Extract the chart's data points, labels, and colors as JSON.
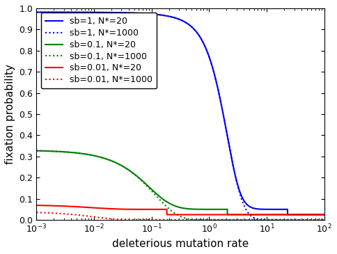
{
  "title": "",
  "xlabel": "deleterious mutation rate",
  "ylabel": "fixation probability",
  "xlim_log": [
    -3,
    2
  ],
  "ylim": [
    0,
    1
  ],
  "yticks": [
    0,
    0.1,
    0.2,
    0.3,
    0.4,
    0.5,
    0.6,
    0.7,
    0.8,
    0.9,
    1
  ],
  "series": [
    {
      "sb": 1.0,
      "N": 20,
      "color": "blue",
      "linestyle": "solid",
      "label": "sb=1, N*=20"
    },
    {
      "sb": 1.0,
      "N": 1000,
      "color": "blue",
      "linestyle": "dotted",
      "label": "sb=1, N*=1000"
    },
    {
      "sb": 0.1,
      "N": 20,
      "color": "green",
      "linestyle": "solid",
      "label": "sb=0.1, N*=20"
    },
    {
      "sb": 0.1,
      "N": 1000,
      "color": "green",
      "linestyle": "dotted",
      "label": "sb=0.1, N*=1000"
    },
    {
      "sb": 0.01,
      "N": 20,
      "color": "red",
      "linestyle": "solid",
      "label": "sb=0.01, N*=20"
    },
    {
      "sb": 0.01,
      "N": 1000,
      "color": "red",
      "linestyle": "dotted",
      "label": "sb=0.01, N*=1000"
    }
  ],
  "background_color": "#ffffff",
  "legend_fontsize": 9,
  "axis_fontsize": 11
}
